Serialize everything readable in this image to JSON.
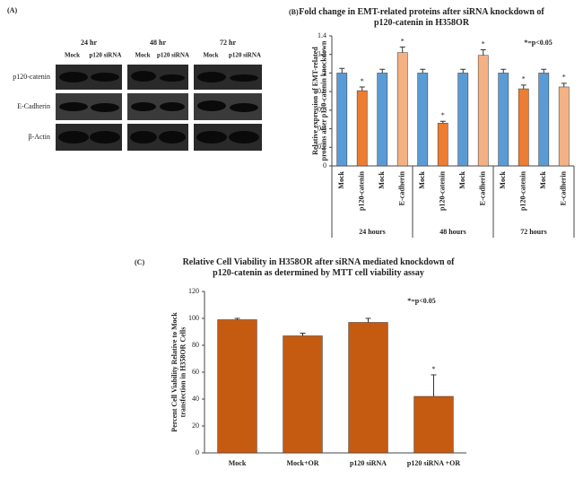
{
  "panel_a": {
    "label": "(A)",
    "times": [
      "24 hr",
      "48 hr",
      "72 hr"
    ],
    "lanes": [
      "Mock",
      "p120 siRNA",
      "Mock",
      "p120 siRNA",
      "Mock",
      "p120 siRNA"
    ],
    "rows": [
      "p120-catenin",
      "E-Cadherin",
      "β-Actin"
    ]
  },
  "chart_data": [
    {
      "type": "bar",
      "label": "(B)",
      "title": "Fold change in EMT-related proteins after siRNA knockdown of p120-catenin in H358OR",
      "y_label": "Relative expression of EMT-related proteins after p120-catenin knockdown",
      "annotation": "*=p<0.05",
      "categories": [
        "Mock",
        "p120-catenin",
        "Mock",
        "E-cadherin",
        "Mock",
        "p120-catenin",
        "Mock",
        "E-cadherin",
        "Mock",
        "p120-catenin",
        "Mock",
        "E-cadherin"
      ],
      "groups": [
        "24 hours",
        "48 hours",
        "72 hours"
      ],
      "values": [
        1.0,
        0.81,
        1.0,
        1.22,
        1.0,
        0.46,
        1.0,
        1.19,
        1.0,
        0.83,
        1.0,
        0.85
      ],
      "errors": [
        0.05,
        0.04,
        0.04,
        0.06,
        0.04,
        0.02,
        0.04,
        0.06,
        0.04,
        0.04,
        0.04,
        0.04
      ],
      "colors": [
        "#5b9bd5",
        "#ed7d31",
        "#5b9bd5",
        "#f4b183",
        "#5b9bd5",
        "#ed7d31",
        "#5b9bd5",
        "#f4b183",
        "#5b9bd5",
        "#ed7d31",
        "#5b9bd5",
        "#f4b183"
      ],
      "markers": [
        null,
        "*",
        null,
        "*",
        null,
        "*",
        null,
        "*",
        null,
        "*",
        null,
        "*"
      ],
      "ylim": [
        0,
        1.4
      ],
      "yticks": [
        0,
        0.2,
        0.4,
        0.6,
        0.8,
        1,
        1.2,
        1.4
      ]
    },
    {
      "type": "bar",
      "label": "(C)",
      "title": "Relative Cell Viability in H358OR after siRNA mediated knockdown of p120-catenin as determined by MTT cell viability assay",
      "y_label": "Percent Cell Viability Relative to Mock transfection in H358OR Cells",
      "annotation": "*=p<0.05",
      "categories": [
        "Mock",
        "Mock+OR",
        "p120 siRNA",
        "p120 siRNA +OR"
      ],
      "values": [
        99,
        87,
        97,
        42
      ],
      "errors": [
        1,
        2,
        3,
        16
      ],
      "colors": [
        "#c55a11",
        "#c55a11",
        "#c55a11",
        "#c55a11"
      ],
      "markers": [
        null,
        null,
        null,
        "*"
      ],
      "ylim": [
        0,
        120
      ],
      "yticks": [
        0,
        20,
        40,
        60,
        80,
        100,
        120
      ]
    }
  ]
}
